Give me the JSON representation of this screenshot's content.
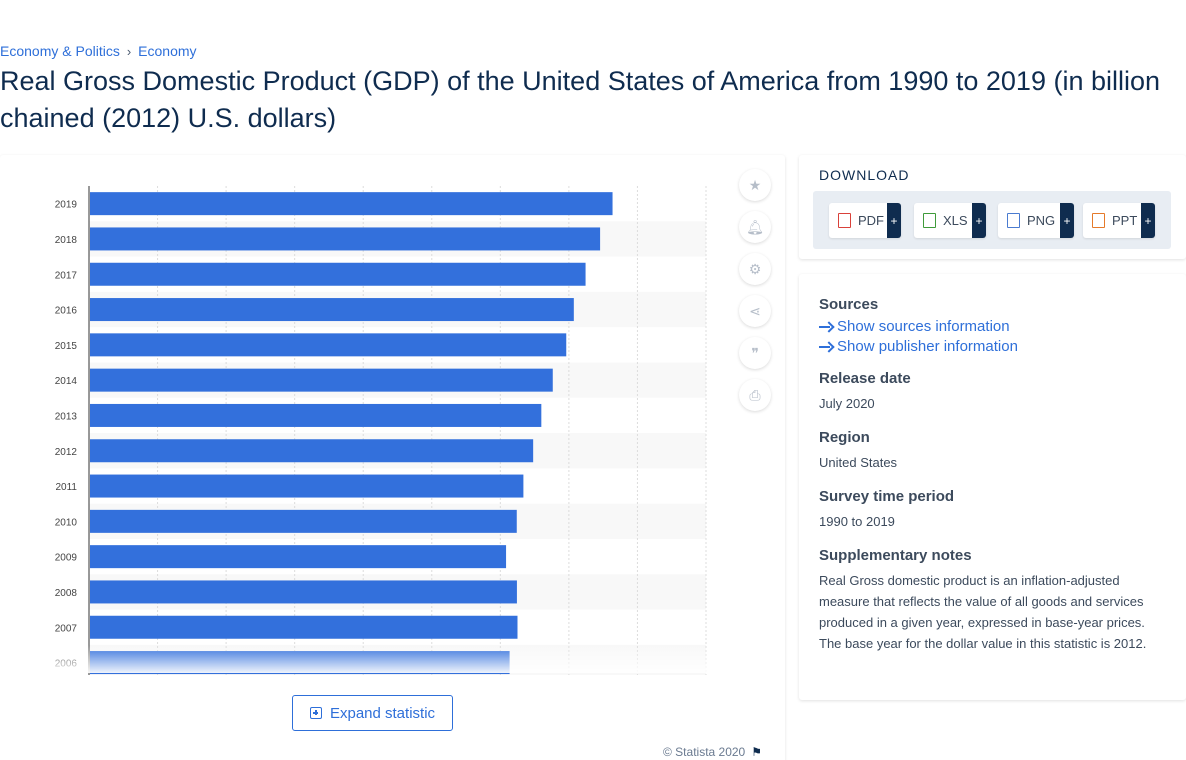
{
  "breadcrumb": {
    "items": [
      "Economy & Politics",
      "Economy"
    ],
    "separator": "›"
  },
  "page_title": "Real Gross Domestic Product (GDP) of the United States of America from 1990 to 2019 (in billion chained (2012) U.S. dollars)",
  "chart_data": {
    "type": "bar",
    "orientation": "horizontal",
    "bar_color": "#3370dc",
    "categories": [
      "2019",
      "2018",
      "2017",
      "2016",
      "2015",
      "2014",
      "2013",
      "2012",
      "2011",
      "2010",
      "2009",
      "2008",
      "2007",
      "2006"
    ],
    "values": [
      19092,
      18638,
      18108,
      17680,
      17404,
      16912,
      16495,
      16197,
      15841,
      15599,
      15209,
      15605,
      15626,
      15338
    ],
    "xlim": [
      0,
      22500
    ],
    "grid": true,
    "xlabel": "",
    "ylabel": ""
  },
  "tools": [
    "star-icon",
    "bell-icon",
    "gear-icon",
    "share-icon",
    "quote-icon",
    "print-icon"
  ],
  "expand_button": "Expand statistic",
  "copyright": "© Statista 2020",
  "download": {
    "title": "DOWNLOAD",
    "buttons": [
      {
        "label": "PDF",
        "color": "#d9413a",
        "plus": "+"
      },
      {
        "label": "XLS",
        "color": "#3f9b3a",
        "plus": "+"
      },
      {
        "label": "PNG",
        "color": "#4a7bd0",
        "plus": "+"
      },
      {
        "label": "PPT",
        "color": "#e57a2a",
        "plus": "+"
      }
    ]
  },
  "info": {
    "sources_heading": "Sources",
    "show_sources": "Show sources information",
    "show_publisher": "Show publisher information",
    "release_heading": "Release date",
    "release_value": "July 2020",
    "region_heading": "Region",
    "region_value": "United States",
    "survey_heading": "Survey time period",
    "survey_value": "1990 to 2019",
    "notes_heading": "Supplementary notes",
    "notes_value": "Real Gross domestic product is an inflation-adjusted measure that reflects the value of all goods and services produced in a given year, expressed in base-year prices. The base year for the dollar value in this statistic is 2012."
  }
}
